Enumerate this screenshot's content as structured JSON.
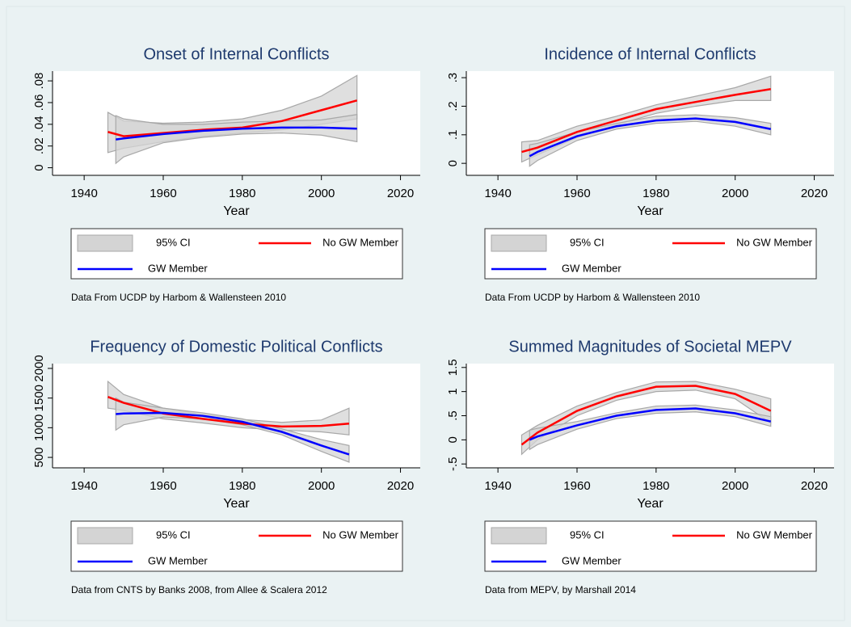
{
  "chart_data": [
    {
      "type": "line",
      "title": "Onset of Internal Conflicts",
      "xlabel": "Year",
      "xlim": [
        1932,
        2025
      ],
      "xticks": [
        1940,
        1960,
        1980,
        2000,
        2020
      ],
      "ylim": [
        -0.007,
        0.089
      ],
      "yticks": [
        0,
        {
          "value": 0.02,
          "label": ".02"
        },
        {
          "value": 0.04,
          "label": ".04"
        },
        {
          "value": 0.06,
          "label": ".06"
        },
        {
          "value": 0.08,
          "label": ".08"
        }
      ],
      "ci": {
        "name": "95% CI",
        "color": "#d4d4d4"
      },
      "series": [
        {
          "name": "No GW Member",
          "color": "#ff0000",
          "x": [
            1946,
            1950,
            1960,
            1970,
            1980,
            1990,
            2000,
            2009
          ],
          "values": [
            0.033,
            0.029,
            0.032,
            0.035,
            0.037,
            0.043,
            0.053,
            0.062
          ],
          "lower": [
            0.014,
            0.018,
            0.024,
            0.029,
            0.032,
            0.035,
            0.04,
            0.045
          ],
          "upper": [
            0.051,
            0.043,
            0.041,
            0.042,
            0.045,
            0.053,
            0.066,
            0.085
          ]
        },
        {
          "name": "GW Member",
          "color": "#0000ff",
          "x": [
            1948,
            1950,
            1960,
            1970,
            1980,
            1990,
            2000,
            2009
          ],
          "values": [
            0.026,
            0.027,
            0.031,
            0.034,
            0.036,
            0.037,
            0.037,
            0.036
          ],
          "lower": [
            0.004,
            0.01,
            0.023,
            0.028,
            0.031,
            0.032,
            0.03,
            0.024
          ],
          "upper": [
            0.048,
            0.045,
            0.04,
            0.04,
            0.042,
            0.043,
            0.044,
            0.049
          ]
        }
      ],
      "note": "Data From UCDP by Harbom & Wallensteen 2010"
    },
    {
      "type": "line",
      "title": "Incidence of Internal Conflicts",
      "xlabel": "Year",
      "xlim": [
        1932,
        2025
      ],
      "xticks": [
        1940,
        1960,
        1980,
        2000,
        2020
      ],
      "ylim": [
        -0.042,
        0.323
      ],
      "yticks": [
        0,
        {
          "value": 0.1,
          "label": ".1"
        },
        {
          "value": 0.2,
          "label": ".2"
        },
        {
          "value": 0.3,
          "label": ".3"
        }
      ],
      "ci": {
        "name": "95% CI",
        "color": "#d4d4d4"
      },
      "series": [
        {
          "name": "No GW Member",
          "color": "#ff0000",
          "x": [
            1946,
            1950,
            1960,
            1970,
            1980,
            1990,
            2000,
            2009
          ],
          "values": [
            0.04,
            0.055,
            0.11,
            0.15,
            0.19,
            0.215,
            0.24,
            0.26
          ],
          "lower": [
            0.005,
            0.03,
            0.09,
            0.135,
            0.175,
            0.2,
            0.22,
            0.22
          ],
          "upper": [
            0.075,
            0.08,
            0.13,
            0.165,
            0.205,
            0.235,
            0.265,
            0.305
          ]
        },
        {
          "name": "GW Member",
          "color": "#0000ff",
          "x": [
            1948,
            1950,
            1960,
            1970,
            1980,
            1990,
            2000,
            2009
          ],
          "values": [
            0.025,
            0.04,
            0.095,
            0.13,
            0.15,
            0.157,
            0.145,
            0.12
          ],
          "lower": [
            -0.01,
            0.01,
            0.08,
            0.12,
            0.14,
            0.147,
            0.13,
            0.1
          ],
          "upper": [
            0.065,
            0.07,
            0.11,
            0.14,
            0.165,
            0.17,
            0.16,
            0.14
          ]
        }
      ],
      "note": "Data From UCDP by Harbom & Wallensteen 2010"
    },
    {
      "type": "line",
      "title": "Frequency of Domestic Political Conflicts",
      "xlabel": "Year",
      "xlim": [
        1932,
        2025
      ],
      "xticks": [
        1940,
        1960,
        1980,
        2000,
        2020
      ],
      "ylim": [
        324,
        2081
      ],
      "yticks": [
        500,
        1000,
        1500,
        2000
      ],
      "ci": {
        "name": "95% CI",
        "color": "#d4d4d4"
      },
      "series": [
        {
          "name": "No GW Member",
          "color": "#ff0000",
          "x": [
            1946,
            1950,
            1960,
            1970,
            1980,
            1990,
            2000,
            2007
          ],
          "values": [
            1520,
            1420,
            1240,
            1150,
            1070,
            1020,
            1030,
            1070
          ],
          "lower": [
            1330,
            1290,
            1150,
            1080,
            1000,
            960,
            930,
            880
          ],
          "upper": [
            1780,
            1560,
            1330,
            1220,
            1140,
            1090,
            1130,
            1330
          ]
        },
        {
          "name": "GW Member",
          "color": "#0000ff",
          "x": [
            1948,
            1950,
            1960,
            1970,
            1980,
            1990,
            2000,
            2007
          ],
          "values": [
            1230,
            1240,
            1250,
            1200,
            1100,
            930,
            700,
            550
          ],
          "lower": [
            960,
            1050,
            1180,
            1150,
            1050,
            880,
            600,
            420
          ],
          "upper": [
            1500,
            1430,
            1330,
            1250,
            1150,
            980,
            800,
            700
          ]
        }
      ],
      "note": "Data from CNTS by Banks 2008, from Allee & Scalera 2012"
    },
    {
      "type": "line",
      "title": "Summed Magnitudes of Societal MEPV",
      "xlabel": "Year",
      "xlim": [
        1932,
        2025
      ],
      "xticks": [
        1940,
        1960,
        1980,
        2000,
        2020
      ],
      "ylim": [
        -0.58,
        1.58
      ],
      "yticks": [
        {
          "value": -0.5,
          "label": "-.5"
        },
        0,
        {
          "value": 0.5,
          "label": ".5"
        },
        1,
        1.5
      ],
      "ci": {
        "name": "95% CI",
        "color": "#d4d4d4"
      },
      "series": [
        {
          "name": "No GW Member",
          "color": "#ff0000",
          "x": [
            1946,
            1950,
            1960,
            1970,
            1980,
            1990,
            2000,
            2009
          ],
          "values": [
            -0.1,
            0.15,
            0.6,
            0.9,
            1.1,
            1.12,
            0.95,
            0.6
          ],
          "lower": [
            -0.3,
            0,
            0.5,
            0.82,
            1,
            1.03,
            0.85,
            0.35
          ],
          "upper": [
            0.1,
            0.3,
            0.7,
            0.98,
            1.2,
            1.21,
            1.05,
            0.85
          ]
        },
        {
          "name": "GW Member",
          "color": "#0000ff",
          "x": [
            1948,
            1950,
            1960,
            1970,
            1980,
            1990,
            2000,
            2009
          ],
          "values": [
            0,
            0.07,
            0.3,
            0.5,
            0.62,
            0.65,
            0.55,
            0.38
          ],
          "lower": [
            -0.2,
            -0.1,
            0.22,
            0.44,
            0.55,
            0.58,
            0.48,
            0.28
          ],
          "upper": [
            0.2,
            0.24,
            0.38,
            0.56,
            0.7,
            0.72,
            0.62,
            0.48
          ]
        }
      ],
      "note": "Data from MEPV, by Marshall 2014"
    }
  ]
}
